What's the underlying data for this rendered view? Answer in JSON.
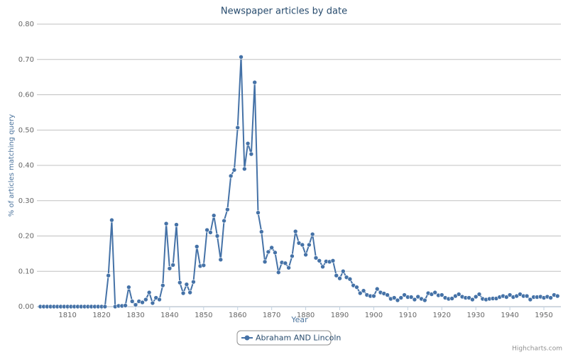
{
  "chart_data": {
    "type": "line",
    "title": "Newspaper articles by date",
    "xlabel": "Year",
    "ylabel": "% of articles matching query",
    "credits": "Highcharts.com",
    "xlim": [
      1801,
      1955
    ],
    "xticks": [
      1810,
      1820,
      1830,
      1840,
      1850,
      1860,
      1870,
      1880,
      1890,
      1900,
      1910,
      1920,
      1930,
      1940,
      1950
    ],
    "ylim": [
      0,
      0.8
    ],
    "yticks": [
      {
        "value": 0,
        "label": "0.00"
      },
      {
        "value": 0.1,
        "label": "0.10"
      },
      {
        "value": 0.2,
        "label": "0.20"
      },
      {
        "value": 0.3,
        "label": "0.30"
      },
      {
        "value": 0.4,
        "label": "0.40"
      },
      {
        "value": 0.5,
        "label": "0.50"
      },
      {
        "value": 0.6,
        "label": "0.60"
      },
      {
        "value": 0.7,
        "label": "0.70"
      },
      {
        "value": 0.8,
        "label": "0.80"
      }
    ],
    "grid": true,
    "legend": "bottom",
    "x": [
      1802,
      1803,
      1804,
      1805,
      1806,
      1807,
      1808,
      1809,
      1810,
      1811,
      1812,
      1813,
      1814,
      1815,
      1816,
      1817,
      1818,
      1819,
      1820,
      1821,
      1822,
      1823,
      1824,
      1825,
      1826,
      1827,
      1828,
      1829,
      1830,
      1831,
      1832,
      1833,
      1834,
      1835,
      1836,
      1837,
      1838,
      1839,
      1840,
      1841,
      1842,
      1843,
      1844,
      1845,
      1846,
      1847,
      1848,
      1849,
      1850,
      1851,
      1852,
      1853,
      1854,
      1855,
      1856,
      1857,
      1858,
      1859,
      1860,
      1861,
      1862,
      1863,
      1864,
      1865,
      1866,
      1867,
      1868,
      1869,
      1870,
      1871,
      1872,
      1873,
      1874,
      1875,
      1876,
      1877,
      1878,
      1879,
      1880,
      1881,
      1882,
      1883,
      1884,
      1885,
      1886,
      1887,
      1888,
      1889,
      1890,
      1891,
      1892,
      1893,
      1894,
      1895,
      1896,
      1897,
      1898,
      1899,
      1900,
      1901,
      1902,
      1903,
      1904,
      1905,
      1906,
      1907,
      1908,
      1909,
      1910,
      1911,
      1912,
      1913,
      1914,
      1915,
      1916,
      1917,
      1918,
      1919,
      1920,
      1921,
      1922,
      1923,
      1924,
      1925,
      1926,
      1927,
      1928,
      1929,
      1930,
      1931,
      1932,
      1933,
      1934,
      1935,
      1936,
      1937,
      1938,
      1939,
      1940,
      1941,
      1942,
      1943,
      1944,
      1945,
      1946,
      1947,
      1948,
      1949,
      1950,
      1951,
      1952,
      1953,
      1954
    ],
    "series": [
      {
        "name": "Abraham AND Lincoln",
        "color": "#4572a7",
        "values": [
          0,
          0,
          0,
          0,
          0,
          0,
          0,
          0,
          0,
          0,
          0,
          0,
          0,
          0,
          0,
          0,
          0,
          0,
          0,
          0,
          0.088,
          0.245,
          0,
          0.002,
          0.002,
          0.003,
          0.055,
          0.015,
          0.005,
          0.015,
          0.012,
          0.02,
          0.04,
          0.01,
          0.025,
          0.02,
          0.06,
          0.235,
          0.108,
          0.118,
          0.232,
          0.068,
          0.038,
          0.063,
          0.04,
          0.07,
          0.17,
          0.115,
          0.117,
          0.217,
          0.21,
          0.258,
          0.2,
          0.133,
          0.243,
          0.275,
          0.37,
          0.387,
          0.507,
          0.707,
          0.39,
          0.462,
          0.432,
          0.635,
          0.266,
          0.212,
          0.127,
          0.155,
          0.167,
          0.153,
          0.097,
          0.125,
          0.123,
          0.11,
          0.143,
          0.213,
          0.18,
          0.175,
          0.147,
          0.175,
          0.205,
          0.138,
          0.13,
          0.113,
          0.128,
          0.127,
          0.13,
          0.088,
          0.08,
          0.1,
          0.083,
          0.078,
          0.06,
          0.055,
          0.038,
          0.045,
          0.033,
          0.03,
          0.03,
          0.05,
          0.04,
          0.037,
          0.033,
          0.022,
          0.025,
          0.018,
          0.025,
          0.033,
          0.027,
          0.027,
          0.02,
          0.028,
          0.022,
          0.018,
          0.038,
          0.035,
          0.04,
          0.032,
          0.033,
          0.025,
          0.022,
          0.023,
          0.03,
          0.035,
          0.028,
          0.025,
          0.025,
          0.02,
          0.028,
          0.035,
          0.022,
          0.02,
          0.022,
          0.023,
          0.023,
          0.027,
          0.03,
          0.027,
          0.033,
          0.027,
          0.03,
          0.035,
          0.03,
          0.03,
          0.02,
          0.027,
          0.027,
          0.028,
          0.025,
          0.028,
          0.025,
          0.033,
          0.03
        ]
      }
    ]
  }
}
